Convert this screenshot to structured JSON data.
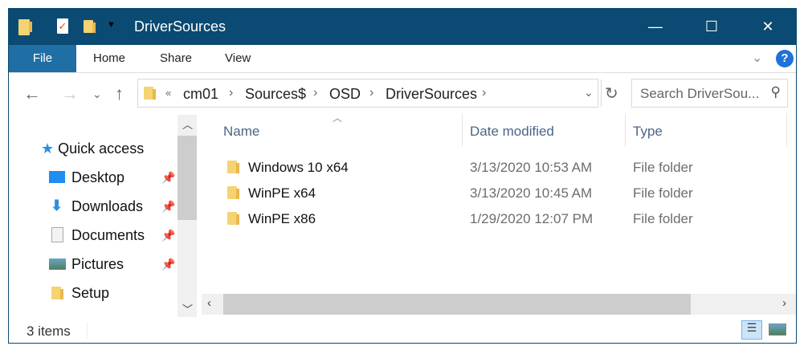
{
  "window": {
    "title": "DriverSources",
    "minimize": "—",
    "maximize": "☐",
    "close": "✕"
  },
  "ribbon": {
    "tabs": [
      {
        "label": "File"
      },
      {
        "label": "Home"
      },
      {
        "label": "Share"
      },
      {
        "label": "View"
      }
    ],
    "help": "?"
  },
  "address": {
    "overflow": "«",
    "crumbs": [
      "cm01",
      "Sources$",
      "OSD",
      "DriverSources"
    ]
  },
  "search": {
    "placeholder": "Search DriverSou..."
  },
  "sidebar": {
    "items": [
      {
        "label": "Quick access",
        "icon": "star-icon"
      },
      {
        "label": "Desktop",
        "icon": "desktop-icon",
        "pinned": true
      },
      {
        "label": "Downloads",
        "icon": "download-icon",
        "pinned": true
      },
      {
        "label": "Documents",
        "icon": "documents-icon",
        "pinned": true
      },
      {
        "label": "Pictures",
        "icon": "pictures-icon",
        "pinned": true
      },
      {
        "label": "Setup",
        "icon": "folder-icon"
      }
    ]
  },
  "columns": [
    "Name",
    "Date modified",
    "Type"
  ],
  "files": [
    {
      "name": "Windows 10 x64",
      "date": "3/13/2020 10:53 AM",
      "type": "File folder"
    },
    {
      "name": "WinPE x64",
      "date": "3/13/2020 10:45 AM",
      "type": "File folder"
    },
    {
      "name": "WinPE x86",
      "date": "1/29/2020 12:07 PM",
      "type": "File folder"
    }
  ],
  "status": {
    "count": "3 items"
  },
  "colors": {
    "titlebar": "#0b4a72",
    "file_tab": "#1f6ea5",
    "folder": "#f5d372"
  }
}
